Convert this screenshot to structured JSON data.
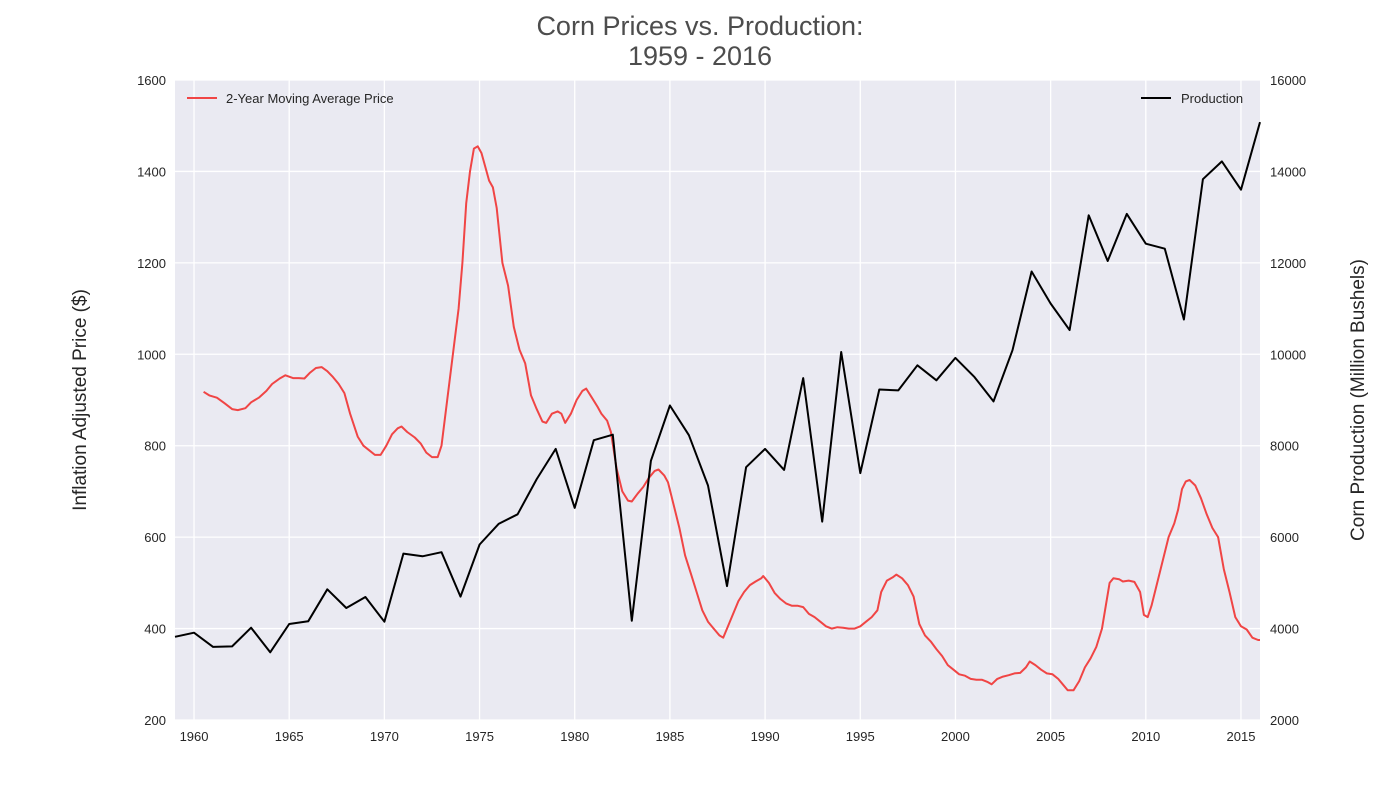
{
  "chart_data": {
    "type": "line",
    "title": [
      "Corn Prices vs. Production:",
      "1959 - 2016"
    ],
    "xlim": [
      1959,
      2016
    ],
    "x_ticks": [
      1960,
      1965,
      1970,
      1975,
      1980,
      1985,
      1990,
      1995,
      2000,
      2005,
      2010,
      2015
    ],
    "grid": true,
    "y_left": {
      "label": "Inflation Adjusted Price ($)",
      "lim": [
        200,
        1600
      ],
      "ticks": [
        200,
        400,
        600,
        800,
        1000,
        1200,
        1400,
        1600
      ]
    },
    "y_right": {
      "label": "Corn Production (Million Bushels)",
      "lim": [
        2000,
        16000
      ],
      "ticks": [
        2000,
        4000,
        6000,
        8000,
        10000,
        12000,
        14000,
        16000
      ]
    },
    "series": [
      {
        "name": "2-Year Moving Average Price",
        "axis": "left",
        "color": "#f04545",
        "legend": "top-left",
        "points": [
          [
            1960.5,
            918
          ],
          [
            1960.8,
            910
          ],
          [
            1961.2,
            905
          ],
          [
            1961.6,
            893
          ],
          [
            1962.0,
            880
          ],
          [
            1962.3,
            878
          ],
          [
            1962.7,
            882
          ],
          [
            1963.0,
            895
          ],
          [
            1963.4,
            905
          ],
          [
            1963.8,
            920
          ],
          [
            1964.1,
            935
          ],
          [
            1964.5,
            947
          ],
          [
            1964.8,
            954
          ],
          [
            1965.2,
            948
          ],
          [
            1965.5,
            948
          ],
          [
            1965.8,
            947
          ],
          [
            1966.1,
            960
          ],
          [
            1966.4,
            970
          ],
          [
            1966.7,
            972
          ],
          [
            1967.0,
            963
          ],
          [
            1967.3,
            950
          ],
          [
            1967.6,
            935
          ],
          [
            1967.9,
            915
          ],
          [
            1968.2,
            870
          ],
          [
            1968.6,
            820
          ],
          [
            1968.9,
            800
          ],
          [
            1969.2,
            790
          ],
          [
            1969.5,
            780
          ],
          [
            1969.8,
            780
          ],
          [
            1970.1,
            800
          ],
          [
            1970.4,
            825
          ],
          [
            1970.7,
            838
          ],
          [
            1970.9,
            842
          ],
          [
            1971.2,
            830
          ],
          [
            1971.6,
            818
          ],
          [
            1971.9,
            805
          ],
          [
            1972.2,
            785
          ],
          [
            1972.5,
            775
          ],
          [
            1972.8,
            775
          ],
          [
            1973.0,
            800
          ],
          [
            1973.3,
            900
          ],
          [
            1973.6,
            1000
          ],
          [
            1973.9,
            1100
          ],
          [
            1974.1,
            1200
          ],
          [
            1974.3,
            1330
          ],
          [
            1974.5,
            1400
          ],
          [
            1974.7,
            1450
          ],
          [
            1974.9,
            1455
          ],
          [
            1975.1,
            1440
          ],
          [
            1975.3,
            1410
          ],
          [
            1975.5,
            1380
          ],
          [
            1975.7,
            1365
          ],
          [
            1975.9,
            1320
          ],
          [
            1976.2,
            1200
          ],
          [
            1976.5,
            1150
          ],
          [
            1976.8,
            1060
          ],
          [
            1977.1,
            1010
          ],
          [
            1977.4,
            980
          ],
          [
            1977.7,
            910
          ],
          [
            1978.0,
            880
          ],
          [
            1978.3,
            853
          ],
          [
            1978.5,
            850
          ],
          [
            1978.8,
            870
          ],
          [
            1979.1,
            875
          ],
          [
            1979.3,
            870
          ],
          [
            1979.5,
            850
          ],
          [
            1979.8,
            870
          ],
          [
            1980.1,
            900
          ],
          [
            1980.4,
            920
          ],
          [
            1980.6,
            925
          ],
          [
            1980.9,
            905
          ],
          [
            1981.2,
            885
          ],
          [
            1981.4,
            870
          ],
          [
            1981.7,
            855
          ],
          [
            1981.9,
            830
          ],
          [
            1982.2,
            750
          ],
          [
            1982.5,
            700
          ],
          [
            1982.8,
            680
          ],
          [
            1983.0,
            678
          ],
          [
            1983.3,
            695
          ],
          [
            1983.6,
            710
          ],
          [
            1983.9,
            730
          ],
          [
            1984.2,
            745
          ],
          [
            1984.4,
            748
          ],
          [
            1984.7,
            735
          ],
          [
            1984.9,
            720
          ],
          [
            1985.2,
            670
          ],
          [
            1985.5,
            620
          ],
          [
            1985.8,
            560
          ],
          [
            1986.1,
            520
          ],
          [
            1986.4,
            480
          ],
          [
            1986.7,
            440
          ],
          [
            1987.0,
            415
          ],
          [
            1987.3,
            400
          ],
          [
            1987.6,
            385
          ],
          [
            1987.8,
            380
          ],
          [
            1988.0,
            400
          ],
          [
            1988.3,
            430
          ],
          [
            1988.6,
            460
          ],
          [
            1988.9,
            480
          ],
          [
            1989.2,
            495
          ],
          [
            1989.5,
            503
          ],
          [
            1989.8,
            510
          ],
          [
            1989.9,
            515
          ],
          [
            1990.2,
            500
          ],
          [
            1990.5,
            478
          ],
          [
            1990.8,
            465
          ],
          [
            1991.1,
            455
          ],
          [
            1991.4,
            450
          ],
          [
            1991.7,
            450
          ],
          [
            1992.0,
            447
          ],
          [
            1992.3,
            432
          ],
          [
            1992.6,
            425
          ],
          [
            1992.9,
            415
          ],
          [
            1993.2,
            405
          ],
          [
            1993.5,
            400
          ],
          [
            1993.8,
            403
          ],
          [
            1994.1,
            402
          ],
          [
            1994.4,
            400
          ],
          [
            1994.7,
            400
          ],
          [
            1995.0,
            405
          ],
          [
            1995.3,
            415
          ],
          [
            1995.6,
            425
          ],
          [
            1995.9,
            440
          ],
          [
            1996.1,
            480
          ],
          [
            1996.4,
            505
          ],
          [
            1996.7,
            512
          ],
          [
            1996.9,
            518
          ],
          [
            1997.2,
            510
          ],
          [
            1997.5,
            495
          ],
          [
            1997.8,
            470
          ],
          [
            1998.1,
            410
          ],
          [
            1998.4,
            385
          ],
          [
            1998.7,
            372
          ],
          [
            1999.0,
            355
          ],
          [
            1999.3,
            340
          ],
          [
            1999.6,
            320
          ],
          [
            1999.9,
            310
          ],
          [
            2000.2,
            300
          ],
          [
            2000.5,
            297
          ],
          [
            2000.8,
            290
          ],
          [
            2001.1,
            288
          ],
          [
            2001.4,
            288
          ],
          [
            2001.7,
            283
          ],
          [
            2001.9,
            278
          ],
          [
            2002.2,
            290
          ],
          [
            2002.5,
            295
          ],
          [
            2002.8,
            298
          ],
          [
            2003.1,
            302
          ],
          [
            2003.4,
            303
          ],
          [
            2003.7,
            315
          ],
          [
            2003.9,
            328
          ],
          [
            2004.2,
            320
          ],
          [
            2004.5,
            310
          ],
          [
            2004.8,
            302
          ],
          [
            2005.1,
            300
          ],
          [
            2005.4,
            290
          ],
          [
            2005.7,
            275
          ],
          [
            2005.9,
            265
          ],
          [
            2006.2,
            265
          ],
          [
            2006.5,
            285
          ],
          [
            2006.8,
            315
          ],
          [
            2007.1,
            335
          ],
          [
            2007.4,
            360
          ],
          [
            2007.7,
            400
          ],
          [
            2007.9,
            450
          ],
          [
            2008.1,
            500
          ],
          [
            2008.3,
            510
          ],
          [
            2008.6,
            508
          ],
          [
            2008.8,
            503
          ],
          [
            2009.1,
            505
          ],
          [
            2009.4,
            502
          ],
          [
            2009.7,
            480
          ],
          [
            2009.9,
            430
          ],
          [
            2010.1,
            425
          ],
          [
            2010.3,
            450
          ],
          [
            2010.6,
            500
          ],
          [
            2010.9,
            550
          ],
          [
            2011.2,
            600
          ],
          [
            2011.5,
            630
          ],
          [
            2011.7,
            660
          ],
          [
            2011.9,
            705
          ],
          [
            2012.1,
            722
          ],
          [
            2012.3,
            725
          ],
          [
            2012.6,
            713
          ],
          [
            2012.9,
            685
          ],
          [
            2013.2,
            650
          ],
          [
            2013.5,
            620
          ],
          [
            2013.8,
            600
          ],
          [
            2014.1,
            530
          ],
          [
            2014.4,
            480
          ],
          [
            2014.7,
            425
          ],
          [
            2015.0,
            405
          ],
          [
            2015.3,
            398
          ],
          [
            2015.6,
            380
          ],
          [
            2015.9,
            375
          ],
          [
            2016.0,
            375
          ]
        ]
      },
      {
        "name": "Production",
        "axis": "right",
        "color": "#000000",
        "legend": "top-right",
        "points": [
          [
            1959,
            3820
          ],
          [
            1960,
            3910
          ],
          [
            1961,
            3600
          ],
          [
            1962,
            3610
          ],
          [
            1963,
            4020
          ],
          [
            1964,
            3480
          ],
          [
            1965,
            4100
          ],
          [
            1966,
            4160
          ],
          [
            1967,
            4860
          ],
          [
            1968,
            4450
          ],
          [
            1969,
            4690
          ],
          [
            1970,
            4150
          ],
          [
            1971,
            5640
          ],
          [
            1972,
            5580
          ],
          [
            1973,
            5670
          ],
          [
            1974,
            4700
          ],
          [
            1975,
            5840
          ],
          [
            1976,
            6290
          ],
          [
            1977,
            6500
          ],
          [
            1978,
            7270
          ],
          [
            1979,
            7930
          ],
          [
            1980,
            6640
          ],
          [
            1981,
            8120
          ],
          [
            1982,
            8240
          ],
          [
            1983,
            4170
          ],
          [
            1984,
            7670
          ],
          [
            1985,
            8880
          ],
          [
            1986,
            8230
          ],
          [
            1987,
            7130
          ],
          [
            1988,
            4930
          ],
          [
            1989,
            7530
          ],
          [
            1990,
            7930
          ],
          [
            1991,
            7470
          ],
          [
            1992,
            9480
          ],
          [
            1993,
            6340
          ],
          [
            1994,
            10050
          ],
          [
            1995,
            7400
          ],
          [
            1996,
            9230
          ],
          [
            1997,
            9210
          ],
          [
            1998,
            9760
          ],
          [
            1999,
            9430
          ],
          [
            2000,
            9920
          ],
          [
            2001,
            9500
          ],
          [
            2002,
            8970
          ],
          [
            2003,
            10090
          ],
          [
            2004,
            11810
          ],
          [
            2005,
            11110
          ],
          [
            2006,
            10530
          ],
          [
            2007,
            13040
          ],
          [
            2008,
            12040
          ],
          [
            2009,
            13070
          ],
          [
            2010,
            12420
          ],
          [
            2011,
            12310
          ],
          [
            2012,
            10760
          ],
          [
            2013,
            13830
          ],
          [
            2014,
            14220
          ],
          [
            2015,
            13600
          ],
          [
            2016,
            15080
          ]
        ]
      }
    ]
  }
}
